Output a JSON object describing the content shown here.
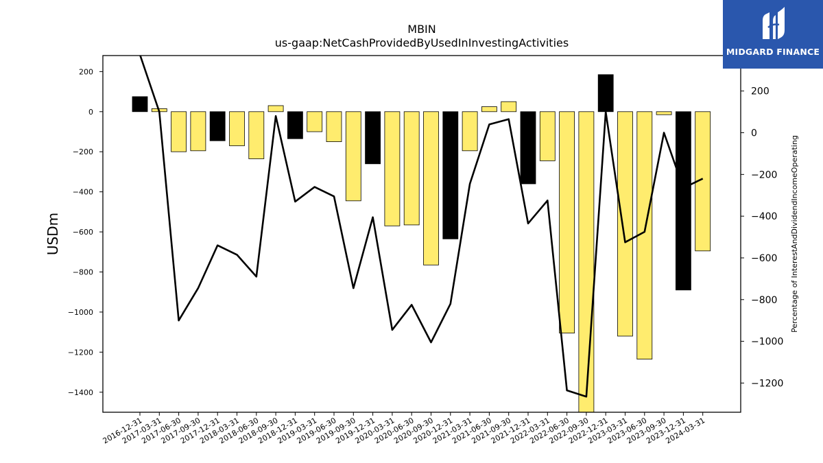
{
  "chart_data": {
    "type": "bar+line",
    "title": "MBIN",
    "subtitle": "us-gaap:NetCashProvidedByUsedInInvestingActivities",
    "ylabel": "USDm",
    "y2label": "Percentage of InterestAndDividendIncomeOperating",
    "ylim": [
      -1500,
      280
    ],
    "y2lim": [
      -1340,
      370
    ],
    "yticks": [
      200,
      0,
      -200,
      -400,
      -600,
      -800,
      -1000,
      -1200,
      -1400
    ],
    "y2ticks": [
      200,
      0,
      -200,
      -400,
      -600,
      -800,
      -1000,
      -1200
    ],
    "categories": [
      "2016-12-31",
      "2017-03-31",
      "2017-06-30",
      "2017-09-30",
      "2017-12-31",
      "2018-03-31",
      "2018-06-30",
      "2018-09-30",
      "2018-12-31",
      "2019-03-31",
      "2019-06-30",
      "2019-09-30",
      "2019-12-31",
      "2020-03-31",
      "2020-06-30",
      "2020-09-30",
      "2020-12-31",
      "2021-03-31",
      "2021-06-30",
      "2021-09-30",
      "2021-12-31",
      "2022-03-31",
      "2022-06-30",
      "2022-09-30",
      "2022-12-31",
      "2023-03-31",
      "2023-06-30",
      "2023-09-30",
      "2023-12-31",
      "2024-03-31"
    ],
    "bars": {
      "values": [
        75,
        15,
        -200,
        -195,
        -145,
        -170,
        -235,
        30,
        -135,
        -100,
        -150,
        -445,
        -260,
        -570,
        -565,
        -765,
        -635,
        -195,
        25,
        50,
        -360,
        -245,
        -1105,
        -1500,
        185,
        -1120,
        -1235,
        -15,
        -890,
        -695
      ],
      "colors": [
        "#000000",
        "#ffec6e",
        "#ffec6e",
        "#ffec6e",
        "#000000",
        "#ffec6e",
        "#ffec6e",
        "#ffec6e",
        "#000000",
        "#ffec6e",
        "#ffec6e",
        "#ffec6e",
        "#000000",
        "#ffec6e",
        "#ffec6e",
        "#ffec6e",
        "#000000",
        "#ffec6e",
        "#ffec6e",
        "#ffec6e",
        "#000000",
        "#ffec6e",
        "#ffec6e",
        "#ffec6e",
        "#000000",
        "#ffec6e",
        "#ffec6e",
        "#ffec6e",
        "#000000",
        "#ffec6e"
      ]
    },
    "line": {
      "color": "#000000",
      "values": [
        375,
        100,
        -900,
        -745,
        -540,
        -585,
        -690,
        80,
        -330,
        -260,
        -305,
        -745,
        -405,
        -945,
        -825,
        -1005,
        -820,
        -245,
        40,
        65,
        -435,
        -325,
        -1235,
        -1265,
        100,
        -525,
        -475,
        0,
        -265,
        -220
      ]
    }
  },
  "logo": {
    "text": "MIDGARD FINANCE",
    "bg": "#2a57ad"
  }
}
